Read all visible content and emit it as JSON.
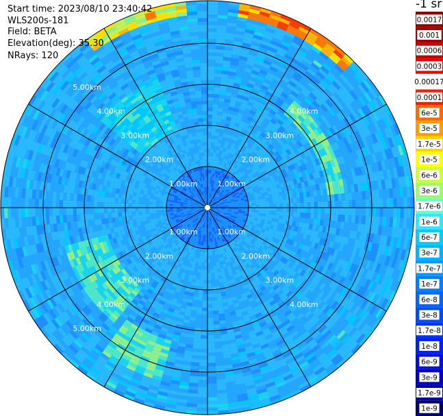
{
  "header": {
    "start_time": "Start time: 2023/08/10 23:40:42",
    "instrument": "WLS200s-181",
    "field": "Field: BETA",
    "elevation": "Elevation(deg): 35.30",
    "nrays": "NRays: 120"
  },
  "range_labels": [
    "1.00km",
    "2.00km",
    "3.00km",
    "4.00km",
    "5.00km"
  ],
  "colorbar": {
    "unit": "-1 sr",
    "ticks": [
      "0.0017",
      "0.001",
      "0.0006",
      "0.0003",
      "0.00017",
      "0.0001",
      "6e-5",
      "3e-5",
      "1.7e-5",
      "1e-5",
      "6e-6",
      "3e-6",
      "1.7e-6",
      "1e-6",
      "6e-7",
      "3e-7",
      "1.7e-7",
      "1e-7",
      "6e-8",
      "3e-8",
      "1.7e-8",
      "1e-8",
      "6e-9",
      "3e-9",
      "1.7e-9",
      "1e-9"
    ],
    "colors": [
      "#8b0000",
      "#a50000",
      "#c80000",
      "#f00000",
      "#ffffff",
      "#ff1a00",
      "#ff6a00",
      "#ff9d00",
      "#ffd400",
      "#ffff00",
      "#ccff33",
      "#99ff66",
      "#66ffcc",
      "#33e6ff",
      "#00ccff",
      "#00b3ff",
      "#0099ff",
      "#0080ff",
      "#0066ff",
      "#004dff",
      "#0033ff",
      "#0022ee",
      "#0011dd",
      "#0000c8",
      "#0000a0",
      "#000070"
    ]
  }
}
